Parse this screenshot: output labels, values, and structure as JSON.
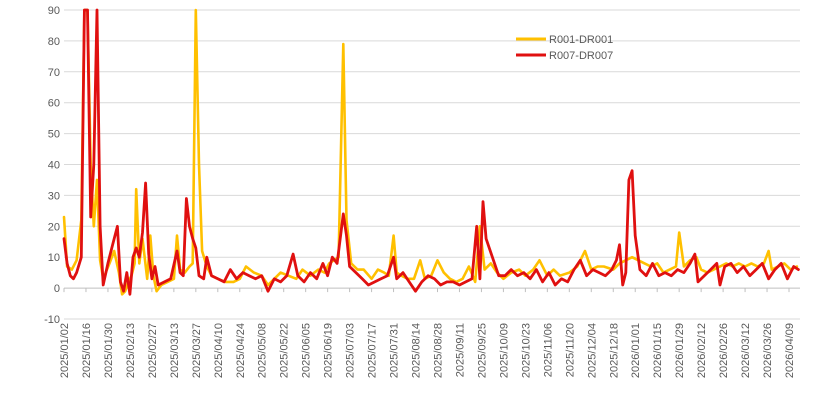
{
  "chart_data": {
    "type": "line",
    "title": "",
    "xlabel": "",
    "ylabel": "",
    "ylim": [
      -10,
      90
    ],
    "yticks": [
      -10,
      0,
      10,
      20,
      30,
      40,
      50,
      60,
      70,
      80,
      90
    ],
    "xlim": [
      "2025-01-02",
      "2026-04-16"
    ],
    "xtick_labels": [
      "2025/01/02",
      "2025/01/16",
      "2025/01/30",
      "2025/02/13",
      "2025/02/27",
      "2025/03/13",
      "2025/03/27",
      "2025/04/10",
      "2025/04/24",
      "2025/05/08",
      "2025/05/22",
      "2025/06/05",
      "2025/06/19",
      "2025/07/03",
      "2025/07/17",
      "2025/07/31",
      "2025/08/14",
      "2025/08/28",
      "2025/09/11",
      "2025/09/25",
      "2025/10/09",
      "2025/10/23",
      "2025/11/06",
      "2025/11/20",
      "2025/12/04",
      "2025/12/18",
      "2026/01/01",
      "2026/01/15",
      "2026/01/29",
      "2026/02/12",
      "2026/02/26",
      "2026/03/12",
      "2026/03/26",
      "2026/04/09"
    ],
    "grid": true,
    "legend_position": "top-right",
    "series": [
      {
        "name": "R001-DR001",
        "color": "#FFC000",
        "points": [
          [
            "2025-01-02",
            23
          ],
          [
            "2025-01-04",
            7
          ],
          [
            "2025-01-07",
            6
          ],
          [
            "2025-01-10",
            9
          ],
          [
            "2025-01-13",
            22
          ],
          [
            "2025-01-15",
            90
          ],
          [
            "2025-01-17",
            90
          ],
          [
            "2025-01-19",
            40
          ],
          [
            "2025-01-21",
            20
          ],
          [
            "2025-01-23",
            35
          ],
          [
            "2025-01-25",
            9
          ],
          [
            "2025-01-27",
            3
          ],
          [
            "2025-01-31",
            8
          ],
          [
            "2025-02-03",
            12
          ],
          [
            "2025-02-06",
            5
          ],
          [
            "2025-02-08",
            -2
          ],
          [
            "2025-02-10",
            -1
          ],
          [
            "2025-02-12",
            2
          ],
          [
            "2025-02-14",
            4
          ],
          [
            "2025-02-16",
            8
          ],
          [
            "2025-02-17",
            32
          ],
          [
            "2025-02-19",
            8
          ],
          [
            "2025-02-21",
            16
          ],
          [
            "2025-02-24",
            3
          ],
          [
            "2025-02-26",
            17
          ],
          [
            "2025-02-28",
            4
          ],
          [
            "2025-03-02",
            -1
          ],
          [
            "2025-03-05",
            1
          ],
          [
            "2025-03-09",
            2
          ],
          [
            "2025-03-13",
            3
          ],
          [
            "2025-03-15",
            17
          ],
          [
            "2025-03-17",
            6
          ],
          [
            "2025-03-20",
            5
          ],
          [
            "2025-03-23",
            7
          ],
          [
            "2025-03-25",
            8
          ],
          [
            "2025-03-27",
            90
          ],
          [
            "2025-03-29",
            40
          ],
          [
            "2025-03-31",
            12
          ],
          [
            "2025-04-03",
            7
          ],
          [
            "2025-04-06",
            4
          ],
          [
            "2025-04-10",
            3
          ],
          [
            "2025-04-15",
            2
          ],
          [
            "2025-04-20",
            2
          ],
          [
            "2025-04-24",
            3
          ],
          [
            "2025-04-28",
            7
          ],
          [
            "2025-05-03",
            5
          ],
          [
            "2025-05-08",
            4
          ],
          [
            "2025-05-12",
            1
          ],
          [
            "2025-05-16",
            3
          ],
          [
            "2025-05-20",
            5
          ],
          [
            "2025-05-25",
            4
          ],
          [
            "2025-05-30",
            3
          ],
          [
            "2025-06-03",
            6
          ],
          [
            "2025-06-08",
            4
          ],
          [
            "2025-06-13",
            6
          ],
          [
            "2025-06-17",
            5
          ],
          [
            "2025-06-20",
            8
          ],
          [
            "2025-06-23",
            9
          ],
          [
            "2025-06-26",
            10
          ],
          [
            "2025-06-29",
            79
          ],
          [
            "2025-07-01",
            22
          ],
          [
            "2025-07-04",
            8
          ],
          [
            "2025-07-08",
            6
          ],
          [
            "2025-07-12",
            6
          ],
          [
            "2025-07-17",
            3
          ],
          [
            "2025-07-21",
            6
          ],
          [
            "2025-07-25",
            5
          ],
          [
            "2025-07-28",
            4
          ],
          [
            "2025-07-31",
            17
          ],
          [
            "2025-08-02",
            5
          ],
          [
            "2025-08-05",
            4
          ],
          [
            "2025-08-09",
            3
          ],
          [
            "2025-08-13",
            3
          ],
          [
            "2025-08-17",
            9
          ],
          [
            "2025-08-20",
            3
          ],
          [
            "2025-08-24",
            4
          ],
          [
            "2025-08-28",
            9
          ],
          [
            "2025-09-01",
            5
          ],
          [
            "2025-09-05",
            3
          ],
          [
            "2025-09-09",
            2
          ],
          [
            "2025-09-13",
            3
          ],
          [
            "2025-09-17",
            7
          ],
          [
            "2025-09-21",
            2
          ],
          [
            "2025-09-24",
            20
          ],
          [
            "2025-09-27",
            6
          ],
          [
            "2025-10-01",
            8
          ],
          [
            "2025-10-05",
            5
          ],
          [
            "2025-10-09",
            3
          ],
          [
            "2025-10-14",
            5
          ],
          [
            "2025-10-19",
            6
          ],
          [
            "2025-10-23",
            4
          ],
          [
            "2025-10-28",
            6
          ],
          [
            "2025-11-01",
            9
          ],
          [
            "2025-11-06",
            4
          ],
          [
            "2025-11-10",
            6
          ],
          [
            "2025-11-14",
            4
          ],
          [
            "2025-11-20",
            5
          ],
          [
            "2025-11-25",
            7
          ],
          [
            "2025-11-30",
            12
          ],
          [
            "2025-12-04",
            6
          ],
          [
            "2025-12-08",
            7
          ],
          [
            "2025-12-12",
            7
          ],
          [
            "2025-12-18",
            6
          ],
          [
            "2025-12-22",
            8
          ],
          [
            "2025-12-26",
            9
          ],
          [
            "2025-12-30",
            10
          ],
          [
            "2026-01-03",
            9
          ],
          [
            "2026-01-07",
            8
          ],
          [
            "2026-01-11",
            7
          ],
          [
            "2026-01-15",
            8
          ],
          [
            "2026-01-19",
            5
          ],
          [
            "2026-01-23",
            6
          ],
          [
            "2026-01-27",
            7
          ],
          [
            "2026-01-29",
            18
          ],
          [
            "2026-02-01",
            7
          ],
          [
            "2026-02-05",
            9
          ],
          [
            "2026-02-09",
            10
          ],
          [
            "2026-02-12",
            6
          ],
          [
            "2026-02-16",
            5
          ],
          [
            "2026-02-20",
            6
          ],
          [
            "2026-02-24",
            7
          ],
          [
            "2026-02-28",
            8
          ],
          [
            "2026-03-04",
            7
          ],
          [
            "2026-03-08",
            8
          ],
          [
            "2026-03-12",
            7
          ],
          [
            "2026-03-16",
            8
          ],
          [
            "2026-03-20",
            7
          ],
          [
            "2026-03-24",
            8
          ],
          [
            "2026-03-27",
            12
          ],
          [
            "2026-03-29",
            6
          ],
          [
            "2026-04-02",
            7
          ],
          [
            "2026-04-06",
            8
          ],
          [
            "2026-04-10",
            6
          ],
          [
            "2026-04-14",
            7
          ]
        ]
      },
      {
        "name": "R007-DR007",
        "color": "#E01010",
        "points": [
          [
            "2025-01-02",
            16
          ],
          [
            "2025-01-04",
            8
          ],
          [
            "2025-01-06",
            4
          ],
          [
            "2025-01-08",
            3
          ],
          [
            "2025-01-10",
            5
          ],
          [
            "2025-01-13",
            10
          ],
          [
            "2025-01-15",
            90
          ],
          [
            "2025-01-17",
            90
          ],
          [
            "2025-01-19",
            23
          ],
          [
            "2025-01-21",
            40
          ],
          [
            "2025-01-23",
            90
          ],
          [
            "2025-01-25",
            20
          ],
          [
            "2025-01-27",
            1
          ],
          [
            "2025-01-30",
            8
          ],
          [
            "2025-02-02",
            14
          ],
          [
            "2025-02-05",
            20
          ],
          [
            "2025-02-07",
            2
          ],
          [
            "2025-02-09",
            -1
          ],
          [
            "2025-02-11",
            5
          ],
          [
            "2025-02-13",
            -2
          ],
          [
            "2025-02-15",
            10
          ],
          [
            "2025-02-17",
            13
          ],
          [
            "2025-02-19",
            10
          ],
          [
            "2025-02-21",
            18
          ],
          [
            "2025-02-23",
            34
          ],
          [
            "2025-02-25",
            11
          ],
          [
            "2025-02-27",
            3
          ],
          [
            "2025-03-01",
            7
          ],
          [
            "2025-03-03",
            1
          ],
          [
            "2025-03-07",
            2
          ],
          [
            "2025-03-11",
            3
          ],
          [
            "2025-03-15",
            12
          ],
          [
            "2025-03-17",
            5
          ],
          [
            "2025-03-19",
            4
          ],
          [
            "2025-03-21",
            29
          ],
          [
            "2025-03-23",
            20
          ],
          [
            "2025-03-25",
            16
          ],
          [
            "2025-03-27",
            13
          ],
          [
            "2025-03-29",
            4
          ],
          [
            "2025-04-01",
            3
          ],
          [
            "2025-04-03",
            10
          ],
          [
            "2025-04-06",
            4
          ],
          [
            "2025-04-10",
            3
          ],
          [
            "2025-04-14",
            2
          ],
          [
            "2025-04-18",
            6
          ],
          [
            "2025-04-22",
            3
          ],
          [
            "2025-04-26",
            5
          ],
          [
            "2025-04-30",
            4
          ],
          [
            "2025-05-04",
            3
          ],
          [
            "2025-05-08",
            4
          ],
          [
            "2025-05-12",
            -1
          ],
          [
            "2025-05-16",
            3
          ],
          [
            "2025-05-20",
            2
          ],
          [
            "2025-05-24",
            4
          ],
          [
            "2025-05-28",
            11
          ],
          [
            "2025-05-31",
            4
          ],
          [
            "2025-06-04",
            2
          ],
          [
            "2025-06-08",
            5
          ],
          [
            "2025-06-12",
            3
          ],
          [
            "2025-06-16",
            8
          ],
          [
            "2025-06-19",
            4
          ],
          [
            "2025-06-22",
            10
          ],
          [
            "2025-06-25",
            8
          ],
          [
            "2025-06-27",
            16
          ],
          [
            "2025-06-29",
            24
          ],
          [
            "2025-07-01",
            17
          ],
          [
            "2025-07-03",
            7
          ],
          [
            "2025-07-07",
            5
          ],
          [
            "2025-07-11",
            3
          ],
          [
            "2025-07-15",
            1
          ],
          [
            "2025-07-19",
            2
          ],
          [
            "2025-07-23",
            3
          ],
          [
            "2025-07-27",
            4
          ],
          [
            "2025-07-31",
            10
          ],
          [
            "2025-08-02",
            3
          ],
          [
            "2025-08-06",
            5
          ],
          [
            "2025-08-10",
            2
          ],
          [
            "2025-08-14",
            -1
          ],
          [
            "2025-08-18",
            2
          ],
          [
            "2025-08-22",
            4
          ],
          [
            "2025-08-26",
            3
          ],
          [
            "2025-08-30",
            1
          ],
          [
            "2025-09-03",
            2
          ],
          [
            "2025-09-07",
            2
          ],
          [
            "2025-09-11",
            1
          ],
          [
            "2025-09-15",
            2
          ],
          [
            "2025-09-19",
            3
          ],
          [
            "2025-09-22",
            20
          ],
          [
            "2025-09-24",
            3
          ],
          [
            "2025-09-26",
            28
          ],
          [
            "2025-09-28",
            16
          ],
          [
            "2025-10-02",
            10
          ],
          [
            "2025-10-06",
            4
          ],
          [
            "2025-10-10",
            4
          ],
          [
            "2025-10-14",
            6
          ],
          [
            "2025-10-18",
            4
          ],
          [
            "2025-10-22",
            5
          ],
          [
            "2025-10-26",
            3
          ],
          [
            "2025-10-30",
            6
          ],
          [
            "2025-11-03",
            2
          ],
          [
            "2025-11-07",
            5
          ],
          [
            "2025-11-11",
            1
          ],
          [
            "2025-11-15",
            3
          ],
          [
            "2025-11-19",
            2
          ],
          [
            "2025-11-23",
            6
          ],
          [
            "2025-11-27",
            9
          ],
          [
            "2025-12-01",
            4
          ],
          [
            "2025-12-05",
            6
          ],
          [
            "2025-12-09",
            5
          ],
          [
            "2025-12-13",
            4
          ],
          [
            "2025-12-17",
            6
          ],
          [
            "2025-12-20",
            9
          ],
          [
            "2025-12-22",
            14
          ],
          [
            "2025-12-24",
            1
          ],
          [
            "2025-12-26",
            5
          ],
          [
            "2025-12-28",
            35
          ],
          [
            "2025-12-30",
            38
          ],
          [
            "2026-01-01",
            17
          ],
          [
            "2026-01-04",
            6
          ],
          [
            "2026-01-08",
            4
          ],
          [
            "2026-01-12",
            8
          ],
          [
            "2026-01-16",
            4
          ],
          [
            "2026-01-20",
            5
          ],
          [
            "2026-01-24",
            4
          ],
          [
            "2026-01-28",
            6
          ],
          [
            "2026-02-01",
            5
          ],
          [
            "2026-02-05",
            8
          ],
          [
            "2026-02-08",
            11
          ],
          [
            "2026-02-10",
            2
          ],
          [
            "2026-02-14",
            4
          ],
          [
            "2026-02-18",
            6
          ],
          [
            "2026-02-22",
            8
          ],
          [
            "2026-02-24",
            1
          ],
          [
            "2026-02-27",
            7
          ],
          [
            "2026-03-03",
            8
          ],
          [
            "2026-03-07",
            5
          ],
          [
            "2026-03-11",
            7
          ],
          [
            "2026-03-15",
            4
          ],
          [
            "2026-03-19",
            6
          ],
          [
            "2026-03-23",
            8
          ],
          [
            "2026-03-27",
            3
          ],
          [
            "2026-03-31",
            6
          ],
          [
            "2026-04-04",
            8
          ],
          [
            "2026-04-08",
            3
          ],
          [
            "2026-04-12",
            7
          ],
          [
            "2026-04-15",
            6
          ]
        ]
      }
    ]
  }
}
